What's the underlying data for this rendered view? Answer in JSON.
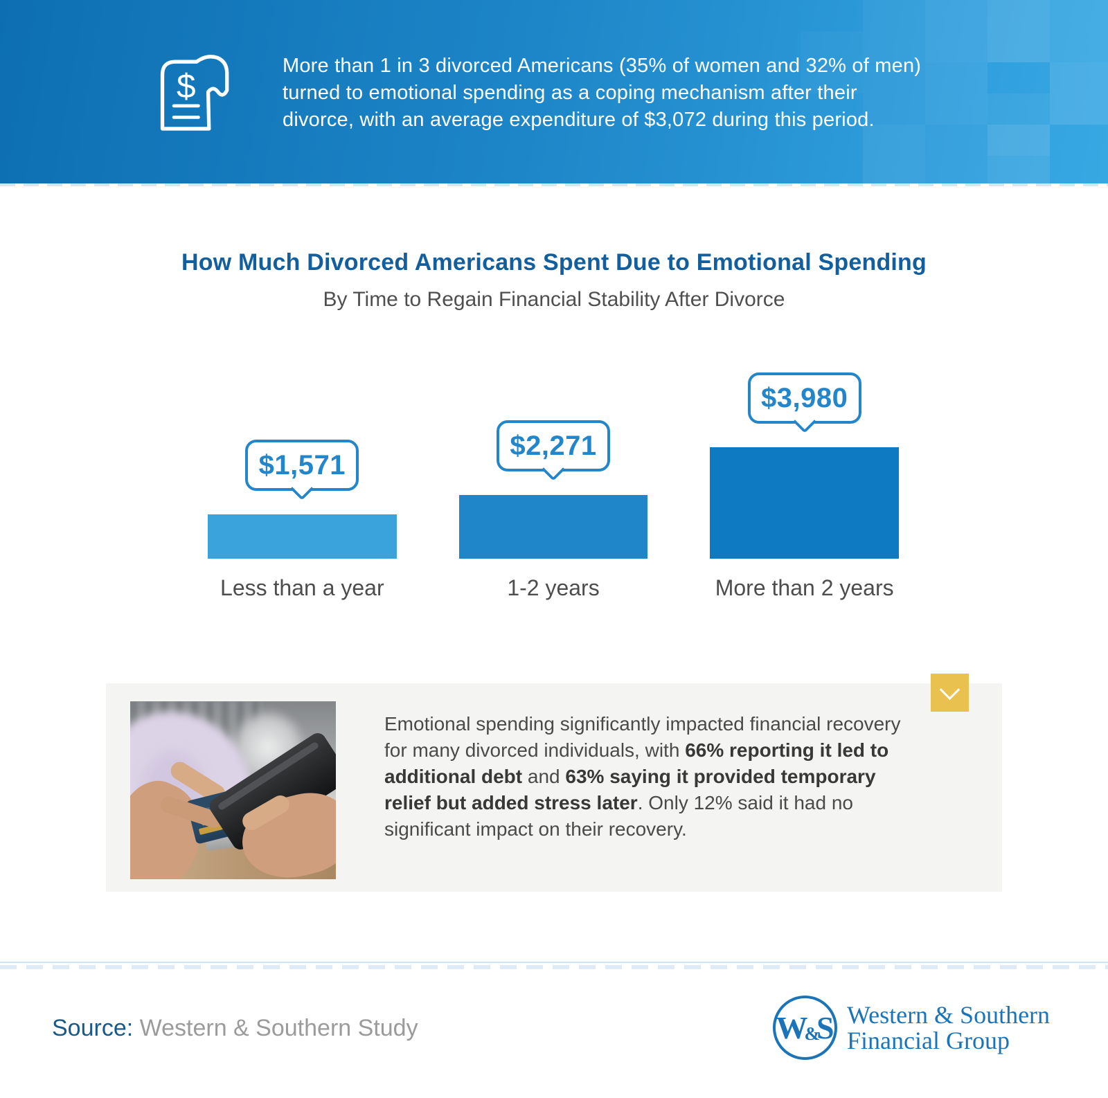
{
  "colors": {
    "header_grad_left": "#0d6fb2",
    "header_grad_right": "#31a0de",
    "title_blue": "#135f9e",
    "subtitle_gray": "#4f4f4f",
    "callout_blue": "#2486ca",
    "label_gray": "#4d4d4d",
    "card_bg": "#f4f4f2",
    "body_text": "#4a4a4a",
    "body_text_bold": "#383838",
    "accent_yellow": "#e8c14e",
    "divider_blue": "#cfe3f1",
    "source_blue": "#19598a",
    "source_gray": "#9b9b9b",
    "logo_blue": "#1b74b8"
  },
  "header": {
    "icon": "receipt-dollar-icon",
    "lines": [
      "More than 1 in 3 divorced Americans (35% of women and 32% of men)",
      "turned to emotional spending as a coping mechanism after their",
      "divorce, with an average expenditure of $3,072 during this period."
    ]
  },
  "chart_data": {
    "type": "bar",
    "title": "How Much Divorced Americans Spent Due to Emotional Spending",
    "subtitle": "By Time to Regain Financial Stability After Divorce",
    "categories": [
      "Less than a year",
      "1-2 years",
      "More than 2 years"
    ],
    "values": [
      1571,
      2271,
      3980
    ],
    "value_labels": [
      "$1,571",
      "$2,271",
      "$3,980"
    ],
    "bar_colors": [
      "#3ba3dc",
      "#1f87c9",
      "#0e7ac1"
    ],
    "ylim": [
      0,
      3980
    ],
    "grid": false,
    "value_label_style": "speech-bubble-above-bar"
  },
  "insight_card": {
    "photo": "person-holding-credit-card-and-phone",
    "expand_button_icon": "chevron-down-icon",
    "text_segments": [
      {
        "text": "Emotional spending significantly impacted financial recovery for many divorced individuals, with ",
        "bold": false
      },
      {
        "text": "66% reporting it led to additional debt",
        "bold": true
      },
      {
        "text": " and ",
        "bold": false
      },
      {
        "text": "63% saying it provided temporary relief but added stress later",
        "bold": true
      },
      {
        "text": ". Only 12% said it had no significant impact on their recovery.",
        "bold": false
      }
    ]
  },
  "footer": {
    "source_label": "Source:",
    "source_text": "Western & Southern Study",
    "logo": {
      "monogram_w": "W",
      "monogram_amp": "&",
      "monogram_s": "S",
      "name_line1": "Western & Southern",
      "name_line2": "Financial Group"
    }
  }
}
